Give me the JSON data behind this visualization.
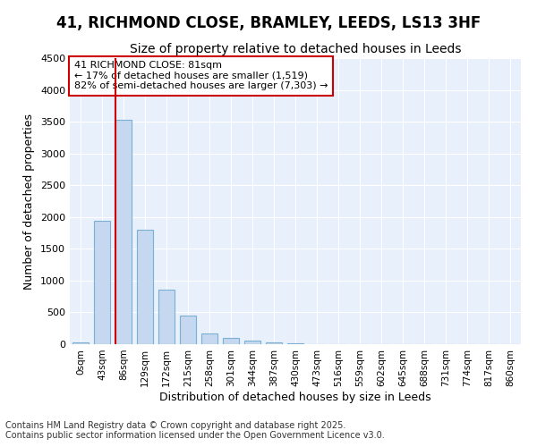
{
  "title_line1": "41, RICHMOND CLOSE, BRAMLEY, LEEDS, LS13 3HF",
  "title_line2": "Size of property relative to detached houses in Leeds",
  "xlabel": "Distribution of detached houses by size in Leeds",
  "ylabel": "Number of detached properties",
  "categories": [
    "0sqm",
    "43sqm",
    "86sqm",
    "129sqm",
    "172sqm",
    "215sqm",
    "258sqm",
    "301sqm",
    "344sqm",
    "387sqm",
    "430sqm",
    "473sqm",
    "516sqm",
    "559sqm",
    "602sqm",
    "645sqm",
    "688sqm",
    "731sqm",
    "774sqm",
    "817sqm",
    "860sqm"
  ],
  "values": [
    25,
    1940,
    3530,
    1800,
    855,
    450,
    175,
    100,
    55,
    30,
    20,
    0,
    0,
    0,
    0,
    0,
    0,
    0,
    0,
    0,
    0
  ],
  "bar_color": "#c5d8f0",
  "bar_edge_color": "#7bafd4",
  "vline_color": "#cc0000",
  "vline_x_index": 2,
  "annotation_text": "41 RICHMOND CLOSE: 81sqm\n← 17% of detached houses are smaller (1,519)\n82% of semi-detached houses are larger (7,303) →",
  "annotation_box_color": "#ffffff",
  "annotation_box_edge_color": "#cc0000",
  "ylim": [
    0,
    4500
  ],
  "yticks": [
    0,
    500,
    1000,
    1500,
    2000,
    2500,
    3000,
    3500,
    4000,
    4500
  ],
  "fig_background_color": "#ffffff",
  "plot_background_color": "#e8f0fc",
  "grid_color": "#ffffff",
  "footer_line1": "Contains HM Land Registry data © Crown copyright and database right 2025.",
  "footer_line2": "Contains public sector information licensed under the Open Government Licence v3.0.",
  "title_fontsize": 12,
  "subtitle_fontsize": 10,
  "tick_fontsize": 7.5,
  "axis_label_fontsize": 9,
  "annotation_fontsize": 8,
  "footer_fontsize": 7
}
